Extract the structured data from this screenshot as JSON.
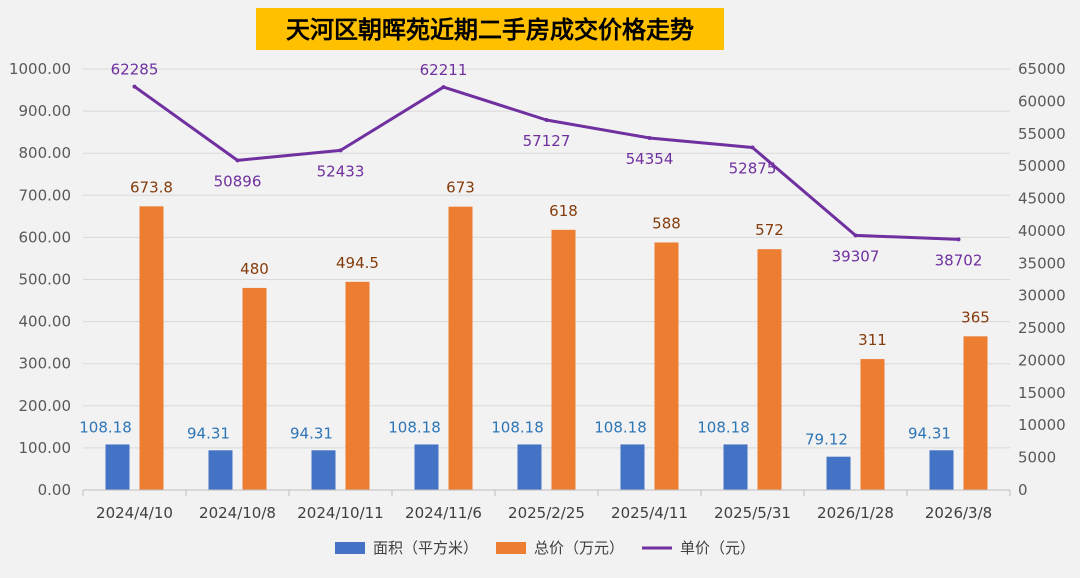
{
  "chart_data": {
    "type": "bar",
    "title": "天河区朝晖苑近期二手房成交价格走势",
    "categories": [
      "2024/4/10",
      "2024/10/8",
      "2024/10/11",
      "2024/11/6",
      "2025/2/25",
      "2025/4/11",
      "2025/5/31",
      "2026/1/28",
      "2026/3/8"
    ],
    "left_axis": {
      "ylim": [
        0,
        1000
      ],
      "ticks": [
        "0.00",
        "100.00",
        "200.00",
        "300.00",
        "400.00",
        "500.00",
        "600.00",
        "700.00",
        "800.00",
        "900.00",
        "1000.00"
      ]
    },
    "right_axis": {
      "ylim": [
        0,
        65000
      ],
      "ticks": [
        "0",
        "5000",
        "10000",
        "15000",
        "20000",
        "25000",
        "30000",
        "35000",
        "40000",
        "45000",
        "50000",
        "55000",
        "60000",
        "65000"
      ]
    },
    "grid": true,
    "legend_position": "bottom",
    "series": [
      {
        "name": "面积（平方米）",
        "kind": "bar",
        "axis": "left",
        "color": "#4472c4",
        "values": [
          108.18,
          94.31,
          94.31,
          108.18,
          108.18,
          108.18,
          108.18,
          79.12,
          94.31
        ],
        "labels": [
          "108.18",
          "94.31",
          "94.31",
          "108.18",
          "108.18",
          "108.18",
          "108.18",
          "79.12",
          "94.31"
        ]
      },
      {
        "name": "总价（万元）",
        "kind": "bar",
        "axis": "left",
        "color": "#ed7d31",
        "values": [
          673.8,
          480,
          494.5,
          673,
          618,
          588,
          572,
          311,
          365
        ],
        "labels": [
          "673.8",
          "480",
          "494.5",
          "673",
          "618",
          "588",
          "572",
          "311",
          "365"
        ]
      },
      {
        "name": "单价（元）",
        "kind": "line",
        "axis": "right",
        "color": "#7030a0",
        "values": [
          62285,
          50896,
          52433,
          62211,
          57127,
          54354,
          52875,
          39307,
          38702
        ],
        "labels": [
          "62285",
          "50896",
          "52433",
          "62211",
          "57127",
          "54354",
          "52875",
          "39307",
          "38702"
        ]
      }
    ]
  }
}
